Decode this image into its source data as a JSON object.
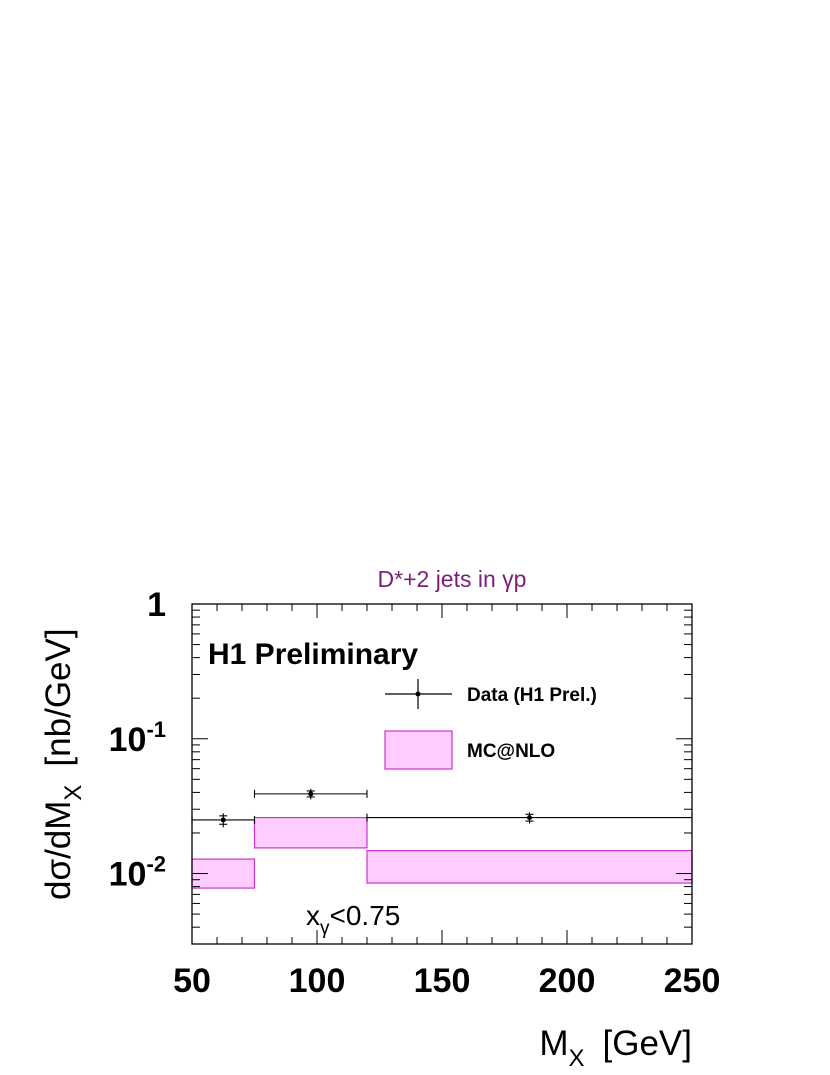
{
  "chart_data": {
    "type": "scatter",
    "title": "D*+2 jets in γp",
    "title_color": "#7a1f7a",
    "xlabel": {
      "main": "M",
      "sub": "X",
      "unit": "[GeV]"
    },
    "ylabel": {
      "pre": "dσ/dM",
      "sub": "X",
      "unit": "[nb/GeV]"
    },
    "xlim": [
      50,
      250
    ],
    "ylim": [
      0.003,
      1
    ],
    "yscale": "log",
    "x_ticks": [
      "50",
      "100",
      "150",
      "200",
      "250"
    ],
    "y_ticks": [
      {
        "value": 1,
        "base": "1",
        "exp": ""
      },
      {
        "value": 0.1,
        "base": "10",
        "exp": "-1"
      },
      {
        "value": 0.01,
        "base": "10",
        "exp": "-2"
      }
    ],
    "experiment_label": "H1 Preliminary",
    "annotation": {
      "main": "x",
      "sub": "γ",
      "rest": "<0.75"
    },
    "legend": {
      "position": "top-right",
      "entries": [
        {
          "label": "Data (H1 Prel.)",
          "kind": "point"
        },
        {
          "label": "MC@NLO",
          "kind": "band"
        }
      ]
    },
    "colors": {
      "band_fill": "#ffccff",
      "band_edge": "#cc33cc",
      "data": "#000000"
    },
    "data": [
      {
        "x": 62.5,
        "x_low": 50,
        "x_high": 75,
        "y": 0.025,
        "y_err_stat": 0.0018,
        "y_err_tot": 0.003
      },
      {
        "x": 97.5,
        "x_low": 75,
        "x_high": 120,
        "y": 0.039,
        "y_err_stat": 0.002,
        "y_err_tot": 0.0035
      },
      {
        "x": 185,
        "x_low": 120,
        "x_high": 250,
        "y": 0.026,
        "y_err_stat": 0.0015,
        "y_err_tot": 0.0025
      }
    ],
    "mc_band": [
      {
        "x_low": 50,
        "x_high": 75,
        "y_low": 0.0078,
        "y_high": 0.0128
      },
      {
        "x_low": 75,
        "x_high": 120,
        "y_low": 0.0155,
        "y_high": 0.026
      },
      {
        "x_low": 120,
        "x_high": 250,
        "y_low": 0.0085,
        "y_high": 0.0148
      }
    ]
  }
}
